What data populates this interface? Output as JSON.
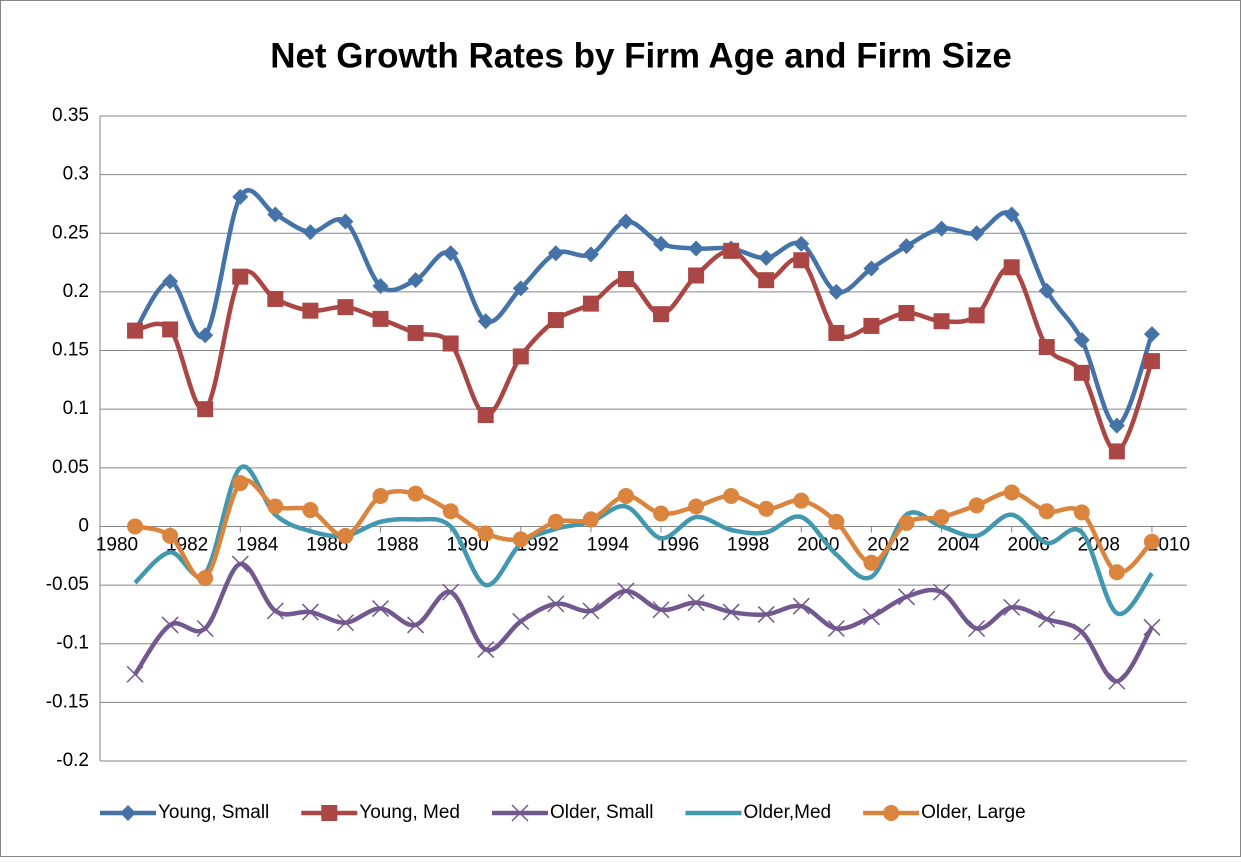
{
  "chart_data": {
    "type": "line",
    "title": "Net Growth Rates by Firm Age and Firm Size",
    "x": [
      1981,
      1982,
      1983,
      1984,
      1985,
      1986,
      1987,
      1988,
      1989,
      1990,
      1991,
      1992,
      1993,
      1994,
      1995,
      1996,
      1997,
      1998,
      1999,
      2000,
      2001,
      2002,
      2003,
      2004,
      2005,
      2006,
      2007,
      2008,
      2009,
      2010
    ],
    "xlim": [
      1980,
      2011
    ],
    "xticks": [
      1980,
      1982,
      1984,
      1986,
      1988,
      1990,
      1992,
      1994,
      1996,
      1998,
      2000,
      2002,
      2004,
      2006,
      2008,
      2010
    ],
    "ylim": [
      -0.2,
      0.35
    ],
    "yticks": [
      -0.2,
      -0.15,
      -0.1,
      -0.05,
      0,
      0.05,
      0.1,
      0.15,
      0.2,
      0.25,
      0.3,
      0.35
    ],
    "grid": true,
    "smooth": true,
    "legend": "bottom",
    "series": [
      {
        "name": "Young, Small",
        "color": "#4572a7",
        "marker": "diamond",
        "values": [
          0.167,
          0.209,
          0.163,
          0.281,
          0.266,
          0.251,
          0.26,
          0.205,
          0.21,
          0.233,
          0.175,
          0.203,
          0.233,
          0.232,
          0.26,
          0.241,
          0.237,
          0.237,
          0.229,
          0.241,
          0.2,
          0.22,
          0.239,
          0.254,
          0.25,
          0.266,
          0.201,
          0.159,
          0.086,
          0.164
        ]
      },
      {
        "name": "Young, Med",
        "color": "#aa4643",
        "marker": "square",
        "values": [
          0.167,
          0.168,
          0.1,
          0.213,
          0.194,
          0.184,
          0.187,
          0.177,
          0.165,
          0.156,
          0.095,
          0.145,
          0.176,
          0.19,
          0.211,
          0.181,
          0.214,
          0.235,
          0.21,
          0.227,
          0.165,
          0.171,
          0.182,
          0.175,
          0.18,
          0.221,
          0.153,
          0.131,
          0.064,
          0.141
        ]
      },
      {
        "name": "Older, Small",
        "color": "#71588f",
        "marker": "x",
        "values": [
          -0.126,
          -0.084,
          -0.087,
          -0.032,
          -0.072,
          -0.073,
          -0.082,
          -0.07,
          -0.084,
          -0.056,
          -0.105,
          -0.081,
          -0.066,
          -0.072,
          -0.055,
          -0.071,
          -0.065,
          -0.073,
          -0.075,
          -0.068,
          -0.087,
          -0.077,
          -0.06,
          -0.056,
          -0.087,
          -0.069,
          -0.079,
          -0.09,
          -0.132,
          -0.086
        ]
      },
      {
        "name": "Older,Med",
        "color": "#4198af",
        "marker": "none",
        "values": [
          -0.048,
          -0.022,
          -0.04,
          0.05,
          0.01,
          -0.004,
          -0.008,
          0.004,
          0.006,
          0.0,
          -0.05,
          -0.015,
          -0.002,
          0.004,
          0.017,
          -0.01,
          0.008,
          -0.003,
          -0.005,
          0.008,
          -0.024,
          -0.043,
          0.01,
          0.0,
          -0.008,
          0.01,
          -0.014,
          -0.005,
          -0.074,
          -0.04
        ]
      },
      {
        "name": "Older, Large",
        "color": "#db843d",
        "marker": "circle",
        "values": [
          0.0,
          -0.008,
          -0.044,
          0.037,
          0.017,
          0.014,
          -0.008,
          0.026,
          0.028,
          0.013,
          -0.006,
          -0.011,
          0.004,
          0.006,
          0.026,
          0.011,
          0.017,
          0.026,
          0.015,
          0.022,
          0.004,
          -0.031,
          0.003,
          0.008,
          0.018,
          0.029,
          0.013,
          0.012,
          -0.039,
          -0.013
        ]
      }
    ]
  }
}
